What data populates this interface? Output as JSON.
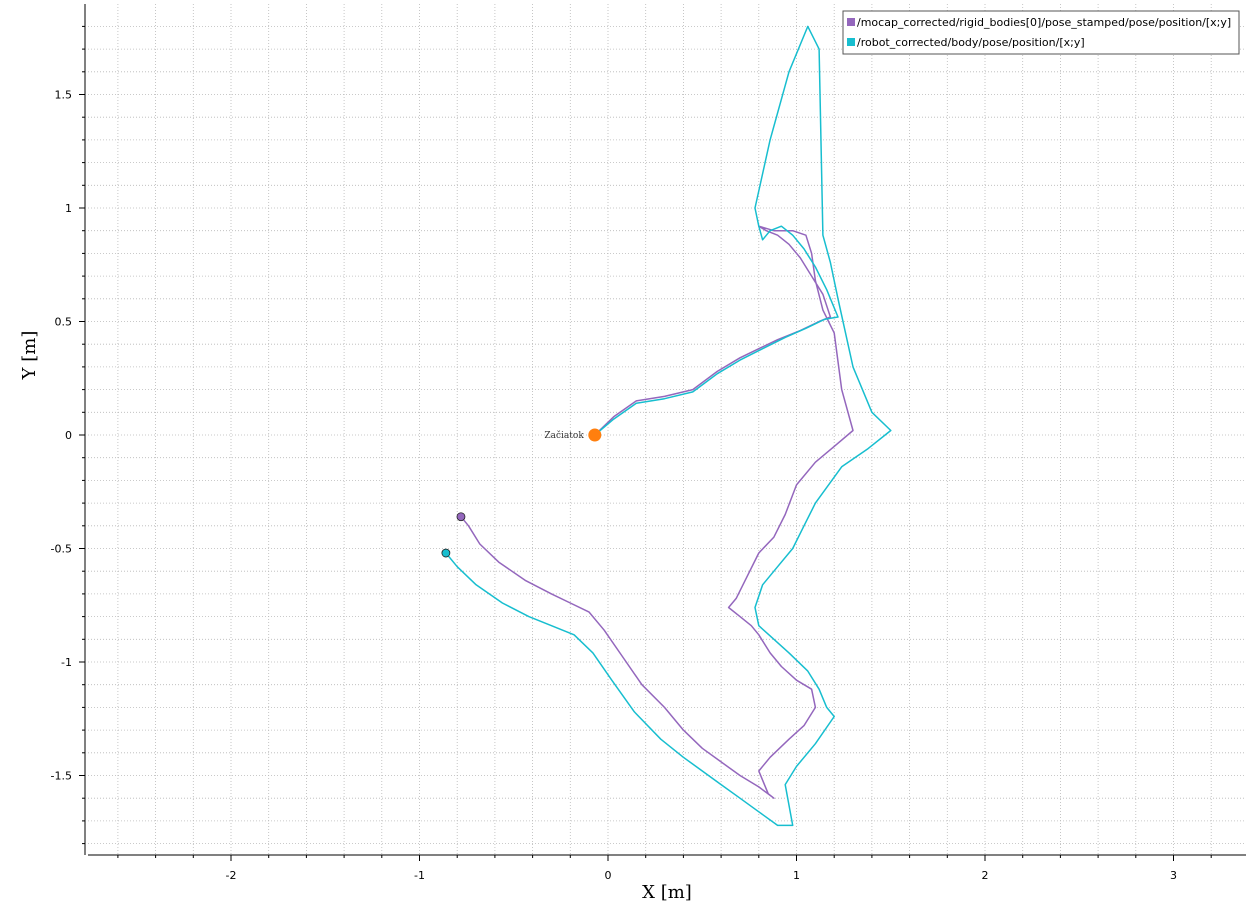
{
  "chart_data": {
    "type": "line",
    "xlabel": "X  [m]",
    "ylabel": "Y  [m]",
    "xlim": [
      -2.75,
      3.4
    ],
    "ylim": [
      -1.85,
      1.9
    ],
    "x_ticks": [
      -2,
      -1,
      0,
      1,
      2,
      3
    ],
    "x_tick_labels": [
      "-2",
      "-1",
      "0",
      "1",
      "2",
      "3"
    ],
    "y_ticks": [
      -1.5,
      -1,
      -0.5,
      0,
      0.5,
      1,
      1.5
    ],
    "y_tick_labels": [
      "-1.5",
      "-1",
      "-0.5",
      "0",
      "0.5",
      "1",
      "1.5"
    ],
    "grid": true,
    "legend_position": "top-right",
    "annotation": {
      "label": "Začiatok",
      "x": -0.07,
      "y": 0.0,
      "color": "#ff7f0e"
    },
    "series": [
      {
        "name": "/mocap_corrected/rigid_bodies[0]/pose_stamped/pose/position/[x;y]",
        "color": "#9467bd",
        "end_marker": true,
        "x": [
          -0.07,
          0.03,
          0.15,
          0.3,
          0.45,
          0.58,
          0.7,
          0.8,
          0.9,
          1.02,
          1.12,
          1.18,
          1.14,
          1.08,
          1.02,
          0.96,
          0.9,
          0.84,
          0.8,
          0.88,
          0.98,
          1.05,
          1.08,
          1.1,
          1.14,
          1.2,
          1.24,
          1.3,
          1.2,
          1.1,
          1.0,
          0.94,
          0.88,
          0.8,
          0.74,
          0.68,
          0.64,
          0.7,
          0.76,
          0.8,
          0.86,
          0.92,
          1.0,
          1.08,
          1.1,
          1.04,
          0.96,
          0.86,
          0.8,
          0.85,
          0.88,
          0.8,
          0.7,
          0.6,
          0.5,
          0.4,
          0.3,
          0.18,
          0.08,
          -0.02,
          -0.1,
          -0.2,
          -0.3,
          -0.44,
          -0.58,
          -0.68,
          -0.74,
          -0.78
        ],
        "y": [
          0.0,
          0.08,
          0.15,
          0.17,
          0.2,
          0.28,
          0.34,
          0.38,
          0.42,
          0.46,
          0.5,
          0.52,
          0.62,
          0.7,
          0.78,
          0.84,
          0.88,
          0.9,
          0.92,
          0.9,
          0.9,
          0.88,
          0.8,
          0.68,
          0.55,
          0.45,
          0.2,
          0.02,
          -0.05,
          -0.12,
          -0.22,
          -0.35,
          -0.45,
          -0.52,
          -0.62,
          -0.72,
          -0.76,
          -0.8,
          -0.84,
          -0.88,
          -0.96,
          -1.02,
          -1.08,
          -1.12,
          -1.2,
          -1.28,
          -1.34,
          -1.42,
          -1.48,
          -1.58,
          -1.6,
          -1.55,
          -1.5,
          -1.44,
          -1.38,
          -1.3,
          -1.2,
          -1.1,
          -0.98,
          -0.86,
          -0.78,
          -0.74,
          -0.7,
          -0.64,
          -0.56,
          -0.48,
          -0.4,
          -0.36
        ]
      },
      {
        "name": "/robot_corrected/body/pose/position/[x;y]",
        "color": "#17becf",
        "end_marker": true,
        "x": [
          -0.07,
          0.03,
          0.15,
          0.3,
          0.45,
          0.58,
          0.7,
          0.82,
          0.94,
          1.05,
          1.15,
          1.22,
          1.16,
          1.1,
          1.04,
          0.98,
          0.92,
          0.86,
          0.82,
          0.8,
          0.78,
          0.86,
          0.96,
          1.06,
          1.12,
          1.14,
          1.18,
          1.22,
          1.3,
          1.4,
          1.5,
          1.38,
          1.24,
          1.1,
          1.04,
          0.98,
          0.9,
          0.82,
          0.78,
          0.8,
          0.88,
          0.96,
          1.06,
          1.12,
          1.16,
          1.2,
          1.1,
          1.0,
          0.94,
          0.98,
          0.9,
          0.8,
          0.7,
          0.6,
          0.5,
          0.4,
          0.28,
          0.14,
          0.02,
          -0.08,
          -0.18,
          -0.3,
          -0.42,
          -0.56,
          -0.7,
          -0.8,
          -0.86
        ],
        "y": [
          0.0,
          0.07,
          0.14,
          0.16,
          0.19,
          0.27,
          0.33,
          0.38,
          0.43,
          0.47,
          0.51,
          0.52,
          0.64,
          0.74,
          0.82,
          0.88,
          0.92,
          0.9,
          0.86,
          0.92,
          1.0,
          1.3,
          1.6,
          1.8,
          1.7,
          0.88,
          0.76,
          0.6,
          0.3,
          0.1,
          0.02,
          -0.06,
          -0.14,
          -0.3,
          -0.4,
          -0.5,
          -0.58,
          -0.66,
          -0.76,
          -0.84,
          -0.9,
          -0.96,
          -1.04,
          -1.12,
          -1.2,
          -1.24,
          -1.36,
          -1.46,
          -1.54,
          -1.72,
          -1.72,
          -1.66,
          -1.6,
          -1.54,
          -1.48,
          -1.42,
          -1.34,
          -1.22,
          -1.08,
          -0.96,
          -0.88,
          -0.84,
          -0.8,
          -0.74,
          -0.66,
          -0.58,
          -0.52
        ]
      }
    ]
  }
}
